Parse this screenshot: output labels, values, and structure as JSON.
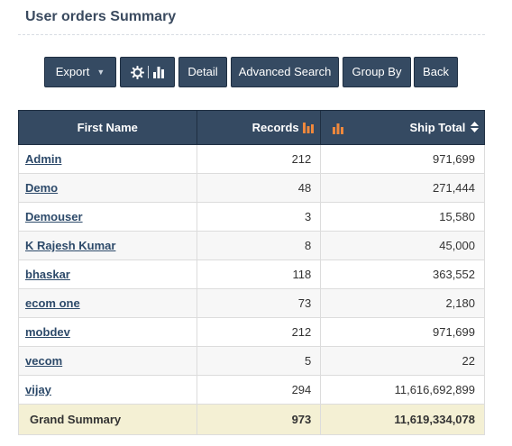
{
  "page": {
    "title": "User orders Summary"
  },
  "toolbar": {
    "export_label": "Export",
    "detail_label": "Detail",
    "advanced_search_label": "Advanced Search",
    "group_by_label": "Group By",
    "back_label": "Back",
    "chart_toggle_icons": [
      "gear-icon",
      "bar-chart-icon"
    ]
  },
  "table": {
    "headers": {
      "first_name": "First Name",
      "records": "Records",
      "ship_total": "Ship Total"
    },
    "rows": [
      {
        "first_name": "Admin",
        "records": "212",
        "ship_total": "971,699"
      },
      {
        "first_name": "Demo",
        "records": "48",
        "ship_total": "271,444"
      },
      {
        "first_name": "Demouser",
        "records": "3",
        "ship_total": "15,580"
      },
      {
        "first_name": "K Rajesh Kumar",
        "records": "8",
        "ship_total": "45,000"
      },
      {
        "first_name": "bhaskar",
        "records": "118",
        "ship_total": "363,552"
      },
      {
        "first_name": "ecom one",
        "records": "73",
        "ship_total": "2,180"
      },
      {
        "first_name": "mobdev",
        "records": "212",
        "ship_total": "971,699"
      },
      {
        "first_name": "vecom",
        "records": "5",
        "ship_total": "22"
      },
      {
        "first_name": "vijay",
        "records": "294",
        "ship_total": "11,616,692,899"
      }
    ],
    "summary": {
      "label": "Grand Summary",
      "records": "973",
      "ship_total": "11,619,334,078"
    }
  },
  "colors": {
    "header_bg": "#354a62",
    "accent_orange": "#f0883c",
    "summary_bg": "#f4f0d4",
    "link": "#2d4a6a"
  }
}
